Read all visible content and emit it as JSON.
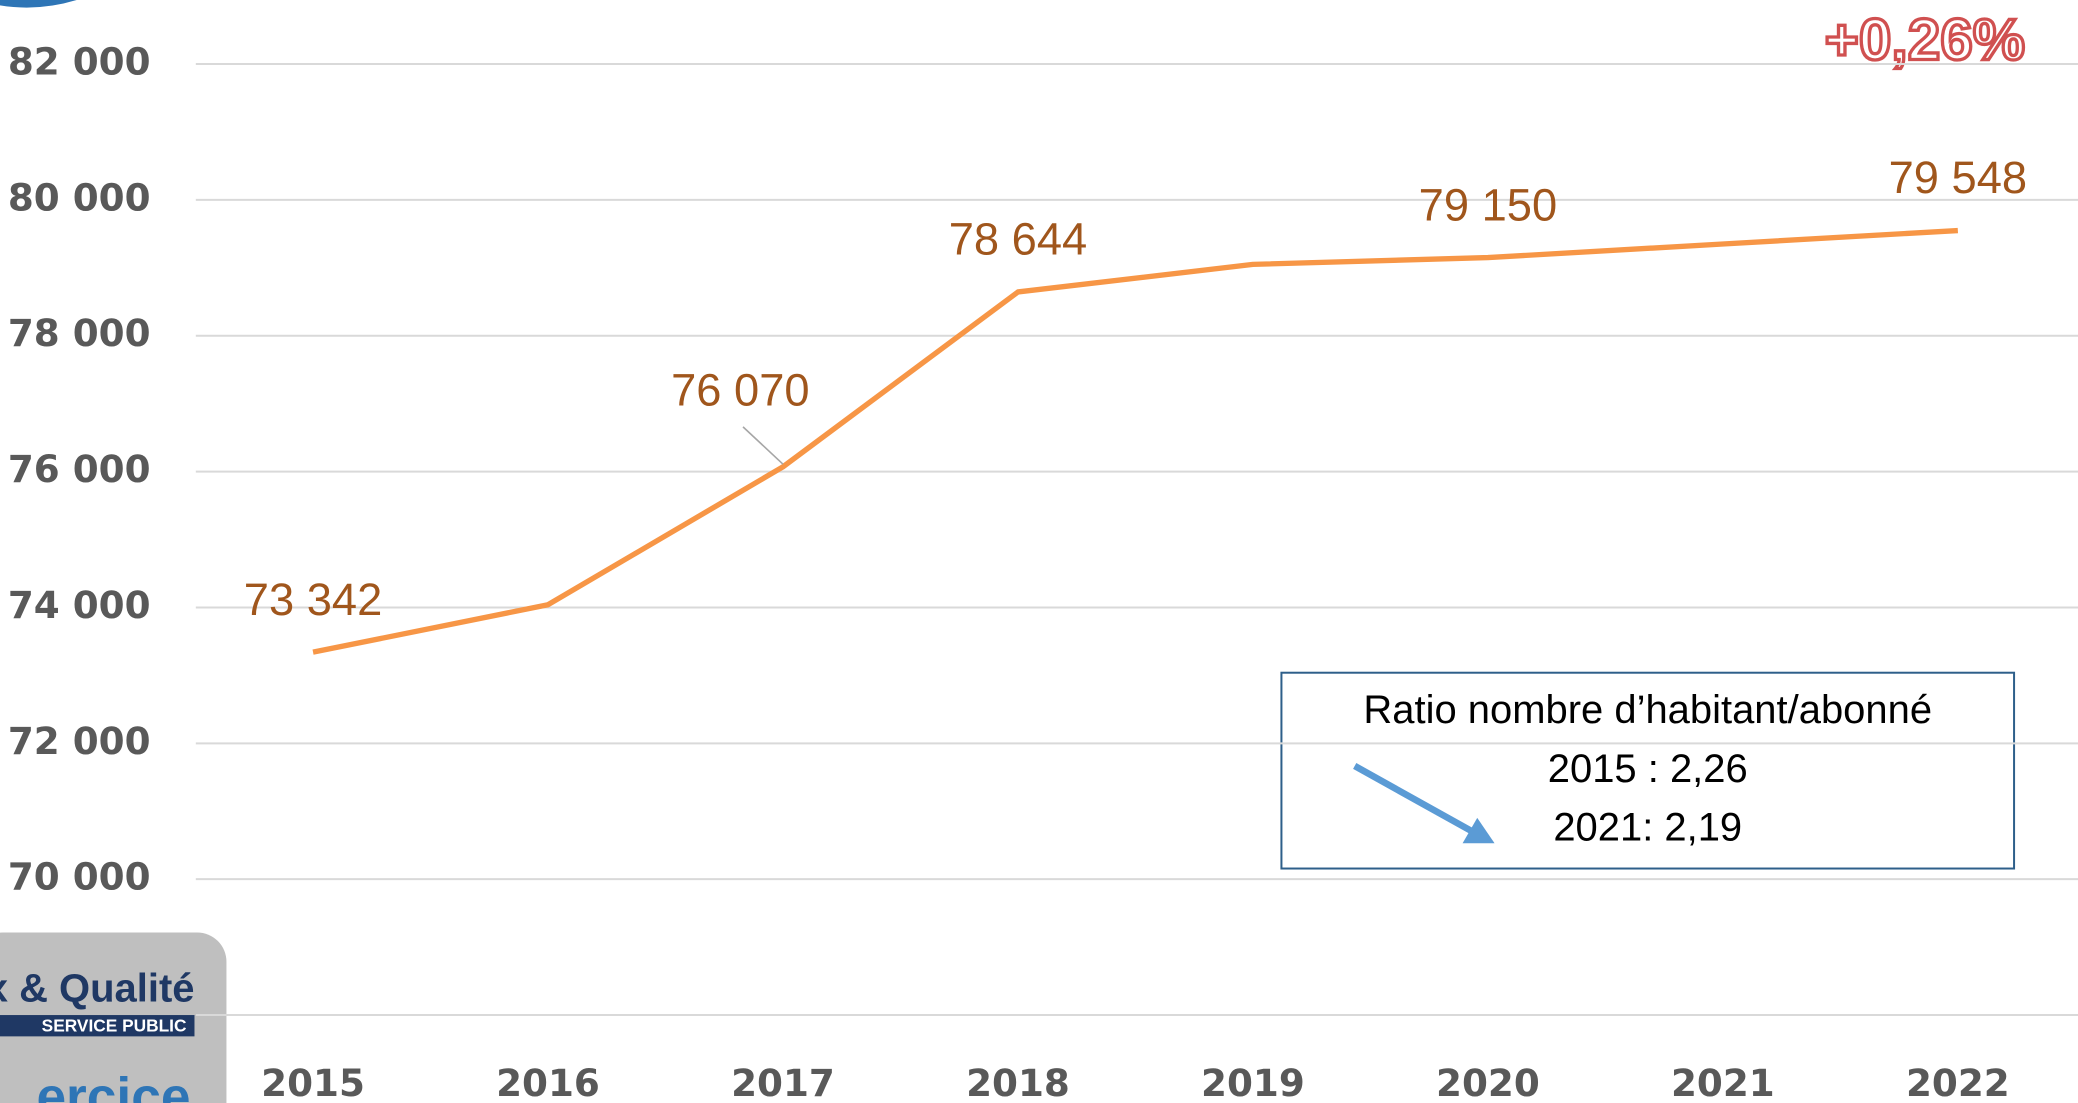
{
  "chart_data": {
    "type": "line",
    "categories": [
      "2015",
      "2016",
      "2017",
      "2018",
      "2019",
      "2020",
      "2021",
      "2022"
    ],
    "series": [
      {
        "name": null,
        "color": "#f79646",
        "values": [
          73342,
          74040,
          76070,
          78644,
          79050,
          79150,
          79350,
          79548
        ],
        "value_labels": [
          "73 342",
          null,
          "76 070",
          "78 644",
          null,
          "79 150",
          null,
          "79 548"
        ]
      }
    ],
    "ylim": [
      68000,
      82000
    ],
    "yticks": [
      {
        "value": 70000,
        "label": "70 000"
      },
      {
        "value": 72000,
        "label": "72 000"
      },
      {
        "value": 74000,
        "label": "74 000"
      },
      {
        "value": 76000,
        "label": "76 000"
      },
      {
        "value": 78000,
        "label": "78 000"
      },
      {
        "value": 80000,
        "label": "80 000"
      },
      {
        "value": 82000,
        "label": "82 000"
      }
    ],
    "grid": true,
    "annotations": {
      "change": "+0,26%",
      "box": [
        "Ratio nombre d’habitant/abonné",
        "2015 : 2,26",
        "2021: 2,19"
      ]
    }
  },
  "logo": {
    "brand": "x & Qualité",
    "subtitle": "SERVICE PUBLIC",
    "caption": "ercice"
  }
}
